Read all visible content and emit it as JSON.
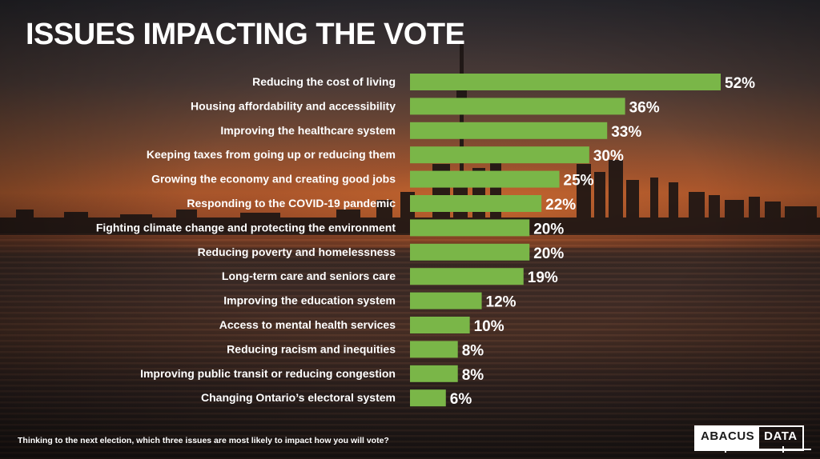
{
  "title": "ISSUES IMPACTING THE VOTE",
  "footnote": "Thinking to the next election, which three issues are most likely to impact how you will vote?",
  "logo": {
    "left": "ABACUS",
    "right": "DATA"
  },
  "colors": {
    "bar": "#7ab648",
    "text": "#ffffff"
  },
  "chart_data": {
    "type": "bar",
    "orientation": "horizontal",
    "categories": [
      "Reducing the cost of living",
      "Housing affordability and accessibility",
      "Improving the healthcare system",
      "Keeping taxes from going up or reducing them",
      "Growing the economy and creating good jobs",
      "Responding to the COVID-19 pandemic",
      "Fighting climate change and protecting the environment",
      "Reducing poverty and homelessness",
      "Long-term care and seniors care",
      "Improving the education system",
      "Access to mental health services",
      "Reducing racism and inequities",
      "Improving public transit or reducing congestion",
      "Changing  Ontario’s electoral system"
    ],
    "values": [
      52,
      36,
      33,
      30,
      25,
      22,
      20,
      20,
      19,
      12,
      10,
      8,
      8,
      6
    ],
    "value_labels": [
      "52%",
      "36%",
      "33%",
      "30%",
      "25%",
      "22%",
      "20%",
      "20%",
      "19%",
      "12%",
      "10%",
      "8%",
      "8%",
      "6%"
    ],
    "xlim": [
      0,
      52
    ],
    "grid": false,
    "legend": "none"
  }
}
